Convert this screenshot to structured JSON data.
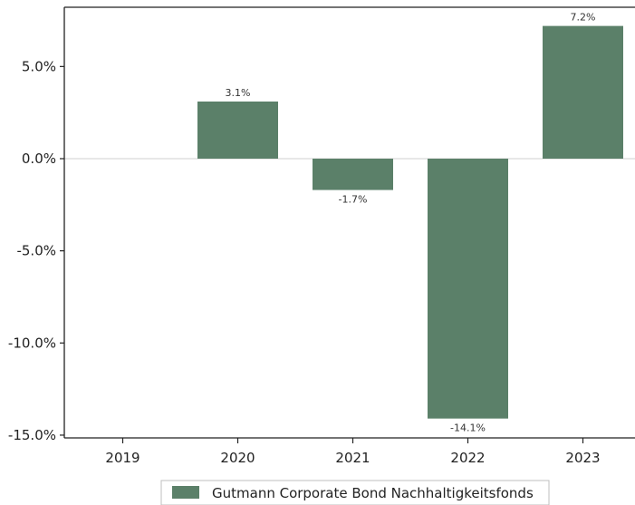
{
  "chart_data": {
    "type": "bar",
    "categories": [
      "2019",
      "2020",
      "2021",
      "2022",
      "2023"
    ],
    "series": [
      {
        "name": "Gutmann Corporate Bond Nachhaltigkeitsfonds",
        "values": [
          null,
          3.1,
          -1.7,
          -14.1,
          7.2
        ],
        "labels": [
          "",
          "3.1%",
          "-1.7%",
          "-14.1%",
          "7.2%"
        ]
      }
    ],
    "ylim": [
      -15,
      8
    ],
    "yticks": [
      5,
      0,
      -5,
      -10,
      -15
    ],
    "ytick_labels": [
      "5.0%",
      "0.0%",
      "-5.0%",
      "-10.0%",
      "-15.0%"
    ],
    "bar_color": "#5b8069",
    "zero_line_color": "#d9d9d9",
    "grid": false,
    "legend_position": "bottom-center"
  }
}
